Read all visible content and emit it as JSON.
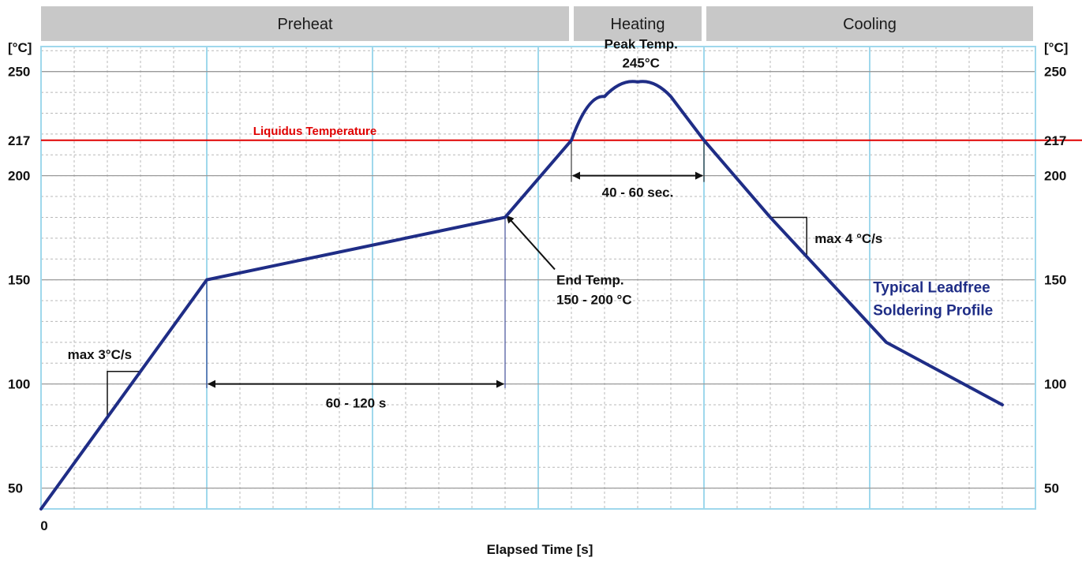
{
  "chart_data": {
    "type": "line",
    "phases": [
      {
        "label": "Preheat",
        "x_start": 0,
        "x_end": 160
      },
      {
        "label": "Heating",
        "x_start": 160,
        "x_end": 200
      },
      {
        "label": "Cooling",
        "x_start": 200,
        "x_end": 300
      }
    ],
    "xlabel": "Elapsed Time [s]",
    "ylabel_left": "[°C]",
    "ylabel_right": "[°C]",
    "x_tick_labels": [
      {
        "x": 0,
        "label": "0"
      }
    ],
    "y_ticks": [
      50,
      100,
      150,
      200,
      217,
      250
    ],
    "ylim": [
      40,
      262
    ],
    "xlim": [
      0,
      300
    ],
    "grid": true,
    "series": [
      {
        "name": "Typical Leadfree Soldering Profile",
        "color": "#1f2d86",
        "points": [
          [
            0,
            40
          ],
          [
            50,
            150
          ],
          [
            140,
            180
          ],
          [
            160,
            217
          ],
          [
            170,
            238
          ],
          [
            180,
            245
          ],
          [
            190,
            238
          ],
          [
            200,
            217
          ],
          [
            220,
            180
          ],
          [
            255,
            120
          ],
          [
            290,
            90
          ]
        ]
      }
    ],
    "reference_line": {
      "label": "Liquidus Temperature",
      "y": 217,
      "color": "#e00000"
    },
    "annotations": {
      "peak_l1": "Peak Temp.",
      "peak_l2": "245°C",
      "dwell": "40 - 60 sec.",
      "end_l1": "End Temp.",
      "end_l2": "150 - 200 °C",
      "preheat_dur": "60 - 120 s",
      "ramp_up": "max 3°C/s",
      "ramp_down": "max 4 °C/s",
      "profile_l1": "Typical Leadfree",
      "profile_l2": "Soldering Profile"
    }
  }
}
